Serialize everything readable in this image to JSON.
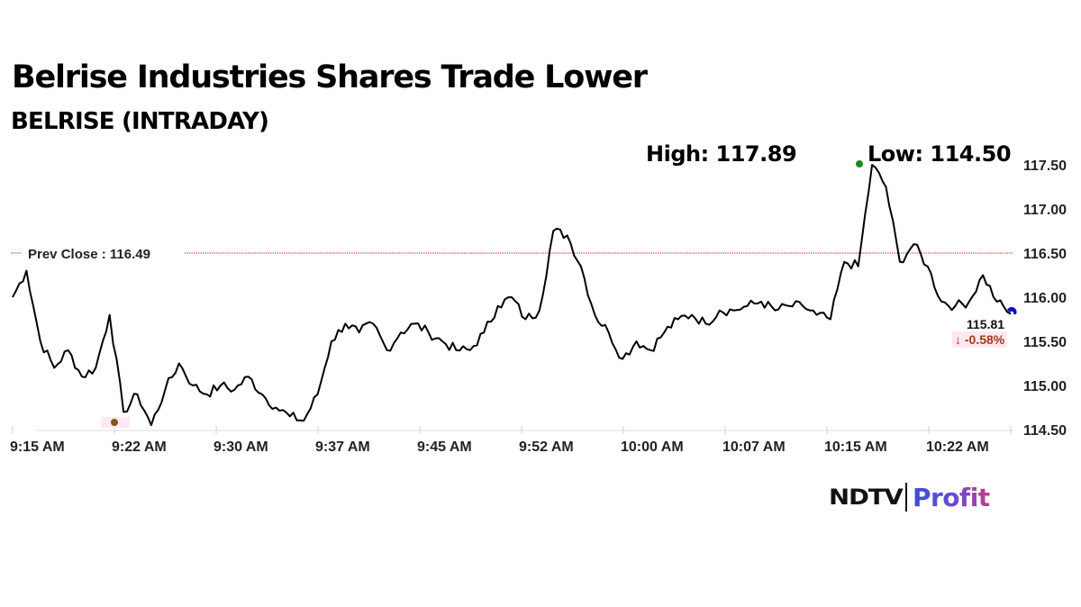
{
  "header": {
    "title": "Belrise Industries Shares Trade Lower",
    "subtitle": "BELRISE (INTRADAY)"
  },
  "stats": {
    "high_label": "High: 117.89",
    "low_label": "Low: 114.50",
    "last_price": "115.81",
    "change": "-0.58%",
    "change_arrow": "↓"
  },
  "prev_close": {
    "label": "Prev Close : 116.49",
    "value": 116.49
  },
  "brand": {
    "primary": "NDTV",
    "secondary": "Profit"
  },
  "colors": {
    "line": "#000000",
    "prev_close": "#e0303a",
    "high_marker": "#1a8a1a",
    "low_marker": "#7a5a10",
    "last_marker": "#1010c0",
    "change_text": "#a33a1a",
    "change_bg": "#fde8f0"
  },
  "chart_data": {
    "type": "line",
    "title": "Belrise Industries Shares Trade Lower",
    "subtitle": "BELRISE (INTRADAY)",
    "xlabel": "",
    "ylabel": "",
    "x_tick_labels": [
      "9:15 AM",
      "9:22 AM",
      "9:30 AM",
      "9:37 AM",
      "9:45 AM",
      "9:52 AM",
      "10:00 AM",
      "10:07 AM",
      "10:15 AM",
      "10:22 AM"
    ],
    "y_tick_labels": [
      "117.50",
      "117.00",
      "116.50",
      "116.00",
      "115.50",
      "115.00",
      "114.50"
    ],
    "ylim": [
      114.5,
      117.6
    ],
    "grid": false,
    "legend": null,
    "annotations": [
      {
        "text": "High: 117.89"
      },
      {
        "text": "Low: 114.50"
      },
      {
        "text": "Prev Close : 116.49",
        "type": "hline",
        "y": 116.49
      },
      {
        "text": "115.81",
        "type": "last_price"
      },
      {
        "text": "↓ -0.58%",
        "type": "change"
      }
    ],
    "series": [
      {
        "name": "BELRISE",
        "x": [
          "9:15",
          "9:16",
          "9:17",
          "9:18",
          "9:19",
          "9:20",
          "9:21",
          "9:22",
          "9:23",
          "9:24",
          "9:25",
          "9:26",
          "9:27",
          "9:28",
          "9:29",
          "9:30",
          "9:31",
          "9:32",
          "9:33",
          "9:34",
          "9:35",
          "9:36",
          "9:37",
          "9:38",
          "9:39",
          "9:40",
          "9:41",
          "9:42",
          "9:43",
          "9:44",
          "9:45",
          "9:46",
          "9:47",
          "9:48",
          "9:49",
          "9:50",
          "9:51",
          "9:52",
          "9:53",
          "9:54",
          "9:55",
          "9:56",
          "9:57",
          "9:58",
          "9:59",
          "10:00",
          "10:01",
          "10:02",
          "10:03",
          "10:04",
          "10:05",
          "10:06",
          "10:07",
          "10:08",
          "10:09",
          "10:10",
          "10:11",
          "10:12",
          "10:13",
          "10:14",
          "10:15",
          "10:16",
          "10:17",
          "10:18",
          "10:19",
          "10:20",
          "10:21",
          "10:22",
          "10:23",
          "10:24",
          "10:25",
          "10:26",
          "10:27"
        ],
        "values": [
          116.0,
          116.3,
          115.5,
          115.2,
          115.4,
          115.1,
          115.2,
          115.8,
          114.7,
          114.9,
          114.55,
          114.95,
          115.25,
          115.0,
          114.9,
          115.0,
          114.95,
          115.1,
          114.9,
          114.75,
          114.65,
          114.6,
          114.9,
          115.5,
          115.7,
          115.6,
          115.7,
          115.4,
          115.6,
          115.7,
          115.6,
          115.5,
          115.4,
          115.4,
          115.6,
          115.9,
          116.0,
          115.75,
          115.85,
          116.75,
          116.7,
          116.35,
          115.8,
          115.6,
          115.3,
          115.5,
          115.4,
          115.6,
          115.75,
          115.8,
          115.7,
          115.85,
          115.85,
          115.9,
          115.95,
          115.85,
          115.9,
          115.9,
          115.8,
          115.75,
          116.4,
          116.35,
          117.5,
          117.25,
          116.4,
          116.6,
          116.35,
          115.95,
          115.9,
          115.95,
          116.25,
          115.95,
          115.81
        ]
      }
    ]
  }
}
